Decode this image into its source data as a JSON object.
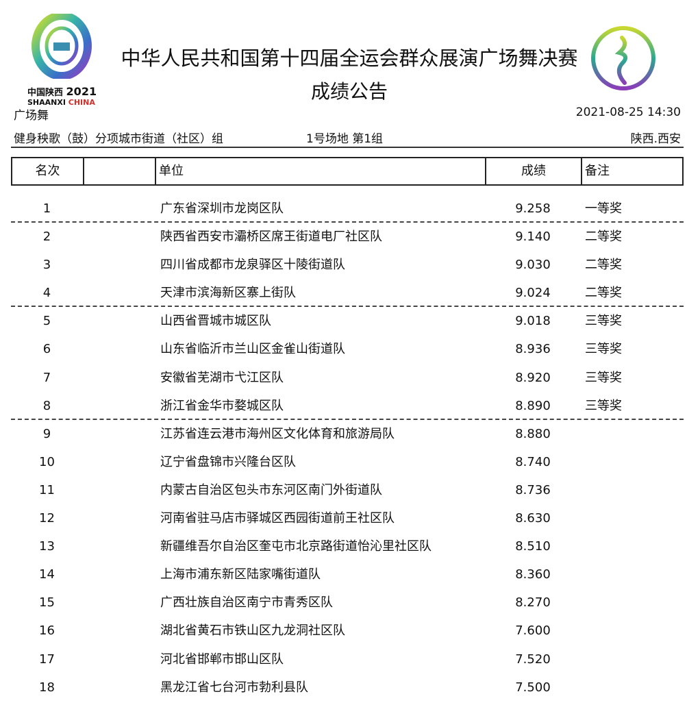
{
  "logo_left": {
    "line1": "中国陕西",
    "year": "2021",
    "line2a": "SHAANXI",
    "line2b": "CHINA"
  },
  "title": "中华人民共和国第十四届全运会群众展演广场舞决赛",
  "subtitle": "成绩公告",
  "category": "广场舞",
  "datetime": "2021-08-25 14:30",
  "event": "健身秧歌（鼓）分项城市街道（社区）组",
  "venue": "1号场地 第1组",
  "location": "陕西.西安",
  "headers": {
    "rank": "名次",
    "blank": "",
    "unit": "单位",
    "score": "成绩",
    "note": "备注"
  },
  "rows": [
    {
      "rank": "1",
      "unit": "广东省深圳市龙岗区队",
      "score": "9.258",
      "note": "一等奖"
    },
    {
      "rank": "2",
      "unit": "陕西省西安市灞桥区席王街道电厂社区队",
      "score": "9.140",
      "note": "二等奖"
    },
    {
      "rank": "3",
      "unit": "四川省成都市龙泉驿区十陵街道队",
      "score": "9.030",
      "note": "二等奖"
    },
    {
      "rank": "4",
      "unit": "天津市滨海新区寨上街队",
      "score": "9.024",
      "note": "二等奖"
    },
    {
      "rank": "5",
      "unit": "山西省晋城市城区队",
      "score": "9.018",
      "note": "三等奖"
    },
    {
      "rank": "6",
      "unit": "山东省临沂市兰山区金雀山街道队",
      "score": "8.936",
      "note": "三等奖"
    },
    {
      "rank": "7",
      "unit": "安徽省芜湖市弋江区队",
      "score": "8.920",
      "note": "三等奖"
    },
    {
      "rank": "8",
      "unit": "浙江省金华市婺城区队",
      "score": "8.890",
      "note": "三等奖"
    },
    {
      "rank": "9",
      "unit": "江苏省连云港市海州区文化体育和旅游局队",
      "score": "8.880",
      "note": ""
    },
    {
      "rank": "10",
      "unit": "辽宁省盘锦市兴隆台区队",
      "score": "8.740",
      "note": ""
    },
    {
      "rank": "11",
      "unit": "内蒙古自治区包头市东河区南门外街道队",
      "score": "8.736",
      "note": ""
    },
    {
      "rank": "12",
      "unit": "河南省驻马店市驿城区西园街道前王社区队",
      "score": "8.630",
      "note": ""
    },
    {
      "rank": "13",
      "unit": "新疆维吾尔自治区奎屯市北京路街道怡沁里社区队",
      "score": "8.510",
      "note": ""
    },
    {
      "rank": "14",
      "unit": "上海市浦东新区陆家嘴街道队",
      "score": "8.360",
      "note": ""
    },
    {
      "rank": "15",
      "unit": "广西壮族自治区南宁市青秀区队",
      "score": "8.270",
      "note": ""
    },
    {
      "rank": "16",
      "unit": "湖北省黄石市铁山区九龙洞社区队",
      "score": "7.600",
      "note": ""
    },
    {
      "rank": "17",
      "unit": "河北省邯郸市邯山区队",
      "score": "7.520",
      "note": ""
    },
    {
      "rank": "18",
      "unit": "黑龙江省七台河市勃利县队",
      "score": "7.500",
      "note": ""
    }
  ]
}
